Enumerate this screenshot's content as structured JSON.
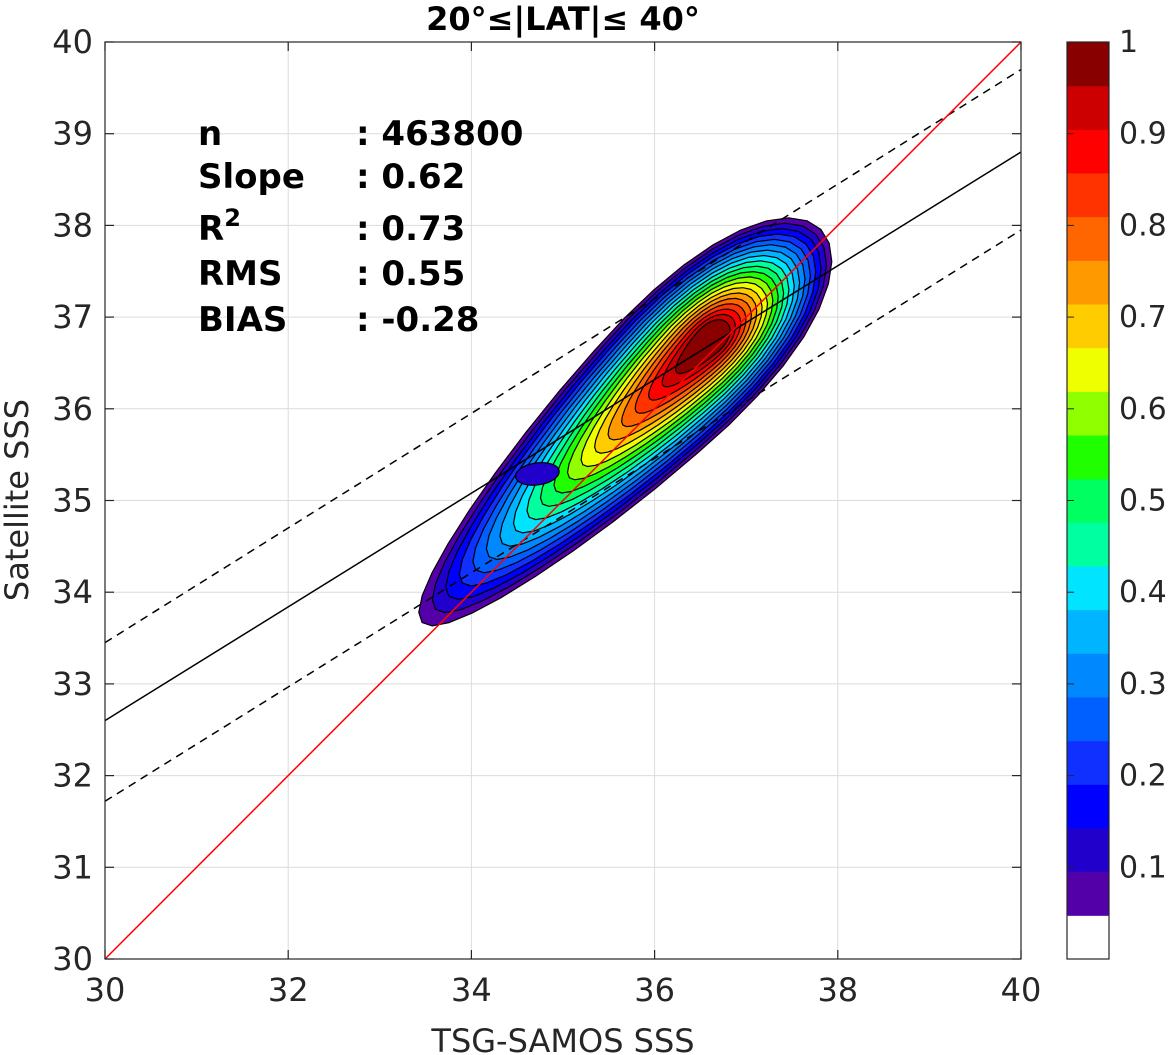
{
  "chart_data": {
    "type": "contour",
    "title": "20°≤|LAT|≤ 40°",
    "xlabel": "TSG-SAMOS SSS",
    "ylabel": "Satellite SSS",
    "xlim": [
      30,
      40
    ],
    "ylim": [
      30,
      40
    ],
    "xticks": [
      "30",
      "32",
      "34",
      "36",
      "38",
      "40"
    ],
    "yticks": [
      "30",
      "31",
      "32",
      "33",
      "34",
      "35",
      "36",
      "37",
      "38",
      "39",
      "40"
    ],
    "grid": true,
    "stats": [
      {
        "label": "n",
        "value": ": 463800"
      },
      {
        "label": "Slope",
        "value": ": 0.62"
      },
      {
        "label": "R",
        "sup": "2",
        "value": ": 0.73"
      },
      {
        "label": "RMS",
        "value": ": 0.55"
      },
      {
        "label": "BIAS",
        "value": ": -0.28"
      }
    ],
    "lines": {
      "one_to_one": {
        "x": [
          30,
          40
        ],
        "y": [
          30,
          40
        ],
        "color": "#ff0000"
      },
      "regression": {
        "x": [
          30,
          40
        ],
        "y": [
          32.6,
          38.8
        ],
        "color": "#000000"
      },
      "upper_bound": {
        "x": [
          30,
          40
        ],
        "y": [
          33.45,
          39.7
        ],
        "color": "#000000",
        "dash": true
      },
      "lower_bound": {
        "x": [
          30,
          40
        ],
        "y": [
          31.72,
          37.95
        ],
        "color": "#000000",
        "dash": true
      }
    },
    "density_peak": {
      "x": 36.55,
      "y": 36.7
    },
    "contour_levels": [
      0.05,
      0.1,
      0.15,
      0.2,
      0.3,
      0.4,
      0.5,
      0.6,
      0.7,
      0.8,
      0.9
    ],
    "colorbar": {
      "ticks": [
        "0.1",
        "0.2",
        "0.3",
        "0.4",
        "0.5",
        "0.6",
        "0.7",
        "0.8",
        "0.9",
        "1"
      ],
      "tick_values": [
        0.1,
        0.2,
        0.3,
        0.4,
        0.5,
        0.6,
        0.7,
        0.8,
        0.9,
        1.0
      ],
      "range": [
        0,
        1
      ],
      "colors": [
        "#ffffff",
        "#5400a8",
        "#2200cc",
        "#0000ff",
        "#1030ff",
        "#0060ff",
        "#0088ff",
        "#00b4ff",
        "#00e4ff",
        "#00ffa0",
        "#00ff60",
        "#20ff00",
        "#90ff00",
        "#f0ff00",
        "#ffcc00",
        "#ff9900",
        "#ff6600",
        "#ff3300",
        "#ff0000",
        "#cc0000",
        "#880000"
      ]
    }
  }
}
